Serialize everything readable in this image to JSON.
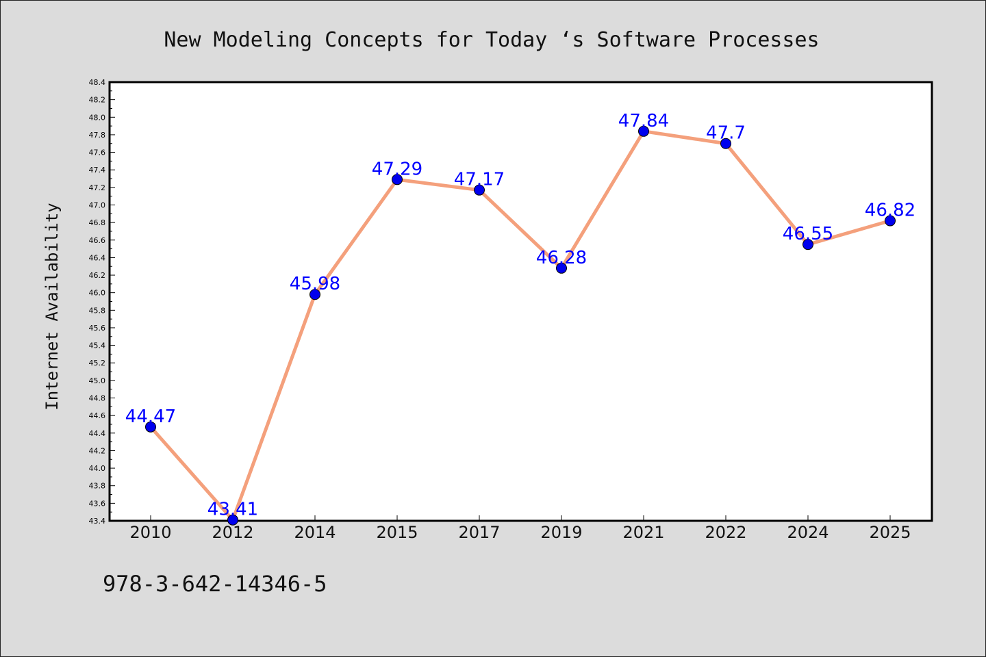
{
  "chart_data": {
    "type": "line",
    "title": "New Modeling Concepts for Today ‘s Software Processes",
    "ylabel": "Internet Availability",
    "xlabel": "",
    "categories": [
      "2010",
      "2012",
      "2014",
      "2015",
      "2017",
      "2019",
      "2021",
      "2022",
      "2024",
      "2025"
    ],
    "values": [
      44.47,
      43.41,
      45.98,
      47.29,
      47.17,
      46.28,
      47.84,
      47.7,
      46.55,
      46.82
    ],
    "data_labels": [
      "44.47",
      "43.41",
      "45.98",
      "47.29",
      "47.17",
      "46.28",
      "47.84",
      "47.7",
      "46.55",
      "46.82"
    ],
    "ylim": [
      43.4,
      48.4
    ],
    "ytick_labels": [
      "43.4",
      "43.6",
      "43.8",
      "44.0",
      "44.2",
      "44.4",
      "44.6",
      "44.8",
      "45.0",
      "45.2",
      "45.4",
      "45.6",
      "45.8",
      "46.0",
      "46.2",
      "46.4",
      "46.6",
      "46.8",
      "47.0",
      "47.2",
      "47.4",
      "47.6",
      "47.8",
      "48.0",
      "48.2",
      "48.4"
    ],
    "grid": false,
    "colors": {
      "line": "#f4a07c",
      "marker": "#0000ee",
      "label": "#0000ff",
      "background": "#dcdcdc",
      "plot_background": "#ffffff"
    }
  },
  "footer": {
    "text": "978-3-642-14346-5"
  }
}
